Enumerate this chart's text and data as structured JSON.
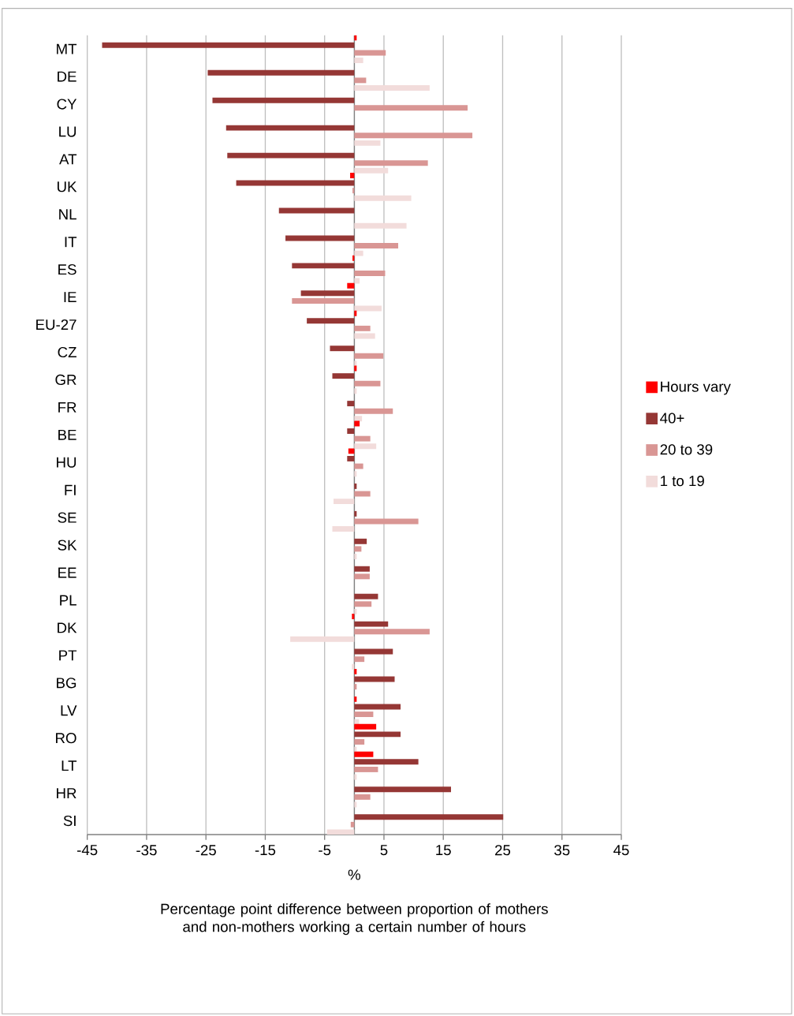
{
  "chart_data": {
    "type": "bar",
    "orientation": "horizontal",
    "xlabel": "%",
    "categories": [
      "MT",
      "DE",
      "CY",
      "LU",
      "AT",
      "UK",
      "NL",
      "IT",
      "ES",
      "IE",
      "EU-27",
      "CZ",
      "GR",
      "FR",
      "BE",
      "HU",
      "FI",
      "SE",
      "SK",
      "EE",
      "PL",
      "DK",
      "PT",
      "BG",
      "LV",
      "RO",
      "LT",
      "HR",
      "SI"
    ],
    "series": [
      {
        "name": "Hours vary",
        "color": "#ff0000",
        "values": [
          0.4,
          0,
          0,
          0,
          0,
          -0.7,
          0,
          0,
          -0.3,
          -1.2,
          0.4,
          0,
          0.4,
          0,
          0.9,
          -1.0,
          0,
          0,
          0,
          0,
          0,
          -0.4,
          0,
          0.4,
          0.4,
          3.7,
          3.2,
          0,
          0
        ]
      },
      {
        "name": "40+",
        "color": "#953735",
        "values": [
          -42.5,
          -24.7,
          -23.9,
          -21.6,
          -21.4,
          -19.9,
          -12.7,
          -11.6,
          -10.5,
          -9.0,
          -8.0,
          -4.1,
          -3.7,
          -1.2,
          -1.2,
          -1.2,
          0.4,
          0.4,
          2.1,
          2.6,
          4.0,
          5.7,
          6.5,
          6.8,
          7.8,
          7.8,
          10.8,
          16.3,
          25.1
        ]
      },
      {
        "name": "20 to 39",
        "color": "#d99694",
        "values": [
          5.3,
          2.0,
          19.1,
          19.9,
          12.4,
          -0.3,
          0,
          7.4,
          5.2,
          -10.5,
          2.7,
          4.9,
          4.4,
          6.5,
          2.7,
          1.5,
          2.7,
          10.8,
          1.2,
          2.6,
          2.9,
          12.7,
          1.7,
          0.4,
          3.2,
          1.7,
          4.0,
          2.7,
          -0.6
        ]
      },
      {
        "name": "1 to 19",
        "color": "#f2dcdb",
        "values": [
          1.5,
          12.7,
          0,
          4.4,
          5.7,
          9.6,
          8.8,
          1.5,
          0.9,
          4.6,
          3.5,
          0.4,
          0.4,
          1.3,
          3.7,
          0.4,
          -3.5,
          -3.7,
          0.4,
          0,
          0.4,
          -10.8,
          -0.4,
          0,
          0.8,
          0.4,
          0.4,
          0.4,
          -4.6
        ]
      }
    ],
    "xlim": [
      -45,
      45
    ],
    "xticks": [
      -45,
      -35,
      -25,
      -15,
      -5,
      5,
      15,
      25,
      35,
      45
    ],
    "grid": "x",
    "legend": "right",
    "annotations": [
      "Percentage point difference between proportion of mothers and non-mothers working a certain number of hours"
    ]
  }
}
